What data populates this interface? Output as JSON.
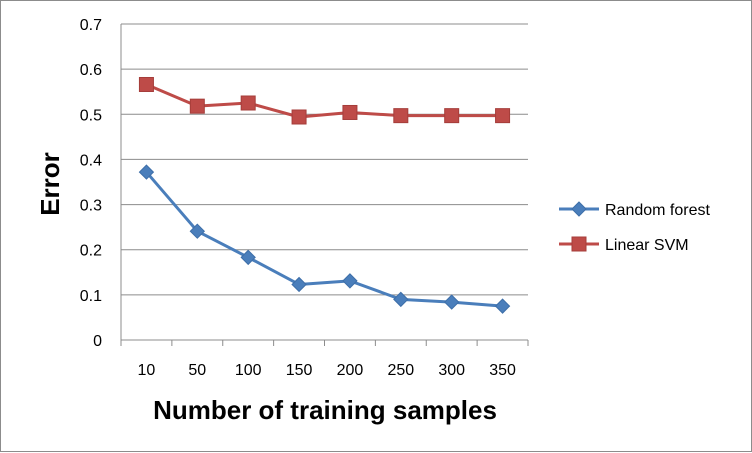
{
  "chart_data": {
    "type": "line",
    "categories": [
      "10",
      "50",
      "100",
      "150",
      "200",
      "250",
      "300",
      "350"
    ],
    "series": [
      {
        "name": "Random forest",
        "color": "#4a7ebb",
        "marker": "diamond",
        "values": [
          0.372,
          0.241,
          0.183,
          0.123,
          0.131,
          0.09,
          0.084,
          0.075
        ]
      },
      {
        "name": "Linear SVM",
        "color": "#be4b48",
        "marker": "square",
        "values": [
          0.566,
          0.518,
          0.525,
          0.494,
          0.504,
          0.497,
          0.497,
          0.497
        ]
      }
    ],
    "xlabel": "Number of training samples",
    "ylabel": "Error",
    "ylim": [
      0,
      0.7
    ],
    "yticks": [
      "0",
      "0.1",
      "0.2",
      "0.3",
      "0.4",
      "0.5",
      "0.6",
      "0.7"
    ],
    "grid": true,
    "legend_position": "right"
  }
}
